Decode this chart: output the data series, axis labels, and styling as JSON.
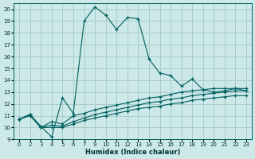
{
  "xlabel": "Humidex (Indice chaleur)",
  "background_color": "#cce8e8",
  "grid_color": "#aacccc",
  "line_color": "#006060",
  "xlim": [
    -0.5,
    21.5
  ],
  "ylim": [
    9,
    20.5
  ],
  "xtick_labels": [
    "0",
    "2",
    "3",
    "4",
    "5",
    "6",
    "7",
    "9",
    "10",
    "11",
    "12",
    "13",
    "14",
    "15",
    "16",
    "17",
    "18",
    "19",
    "20",
    "21",
    "22",
    "23"
  ],
  "yticks": [
    9,
    10,
    11,
    12,
    13,
    14,
    15,
    16,
    17,
    18,
    19,
    20
  ],
  "line1_y": [
    10.7,
    11.1,
    10.1,
    9.2,
    12.5,
    11.2,
    19.0,
    20.2,
    19.5,
    18.3,
    19.3,
    19.2,
    15.8,
    14.6,
    14.4,
    13.5,
    14.1,
    13.2,
    13.0,
    13.1,
    13.3,
    13.1
  ],
  "line2_y": [
    10.7,
    11.1,
    10.0,
    10.5,
    10.3,
    11.0,
    11.2,
    11.5,
    11.7,
    11.9,
    12.1,
    12.3,
    12.5,
    12.6,
    12.8,
    13.0,
    13.1,
    13.2,
    13.3,
    13.3,
    13.3,
    13.3
  ],
  "line3_y": [
    10.7,
    11.1,
    10.0,
    10.2,
    10.1,
    10.5,
    10.8,
    11.1,
    11.3,
    11.5,
    11.7,
    11.9,
    12.1,
    12.2,
    12.4,
    12.5,
    12.7,
    12.8,
    12.9,
    13.0,
    13.1,
    13.1
  ],
  "line4_y": [
    10.7,
    11.0,
    10.0,
    10.0,
    10.0,
    10.3,
    10.6,
    10.8,
    11.0,
    11.2,
    11.4,
    11.6,
    11.7,
    11.8,
    12.0,
    12.1,
    12.3,
    12.4,
    12.5,
    12.6,
    12.7,
    12.7
  ]
}
